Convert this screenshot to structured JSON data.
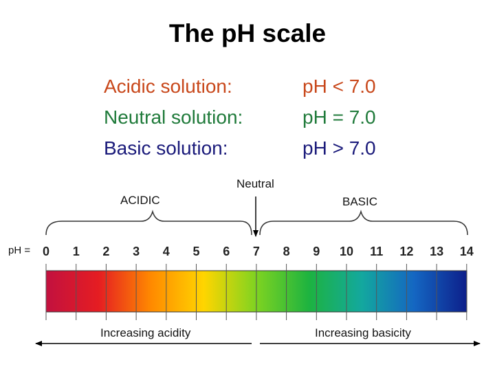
{
  "title": "The pH scale",
  "definitions": [
    {
      "label": "Acidic solution:",
      "value": "pH < 7.0",
      "color": "#c8471a"
    },
    {
      "label": "Neutral solution:",
      "value": "pH = 7.0",
      "color": "#1f7a3a"
    },
    {
      "label": "Basic solution:",
      "value": "pH > 7.0",
      "color": "#1a1a7a"
    }
  ],
  "region_labels": {
    "acidic": "ACIDIC",
    "neutral": "Neutral",
    "basic": "BASIC"
  },
  "scale_prefix": "pH =",
  "scale_values": [
    "0",
    "1",
    "2",
    "3",
    "4",
    "5",
    "6",
    "7",
    "8",
    "9",
    "10",
    "11",
    "12",
    "13",
    "14"
  ],
  "arrows": {
    "acidity": "Increasing acidity",
    "basicity": "Increasing basicity"
  },
  "gradient_colors": [
    "#c2113f",
    "#e51d22",
    "#ff8a00",
    "#ffd500",
    "#7ed321",
    "#1db340",
    "#13a89e",
    "#1466c2",
    "#0d1f8a"
  ]
}
